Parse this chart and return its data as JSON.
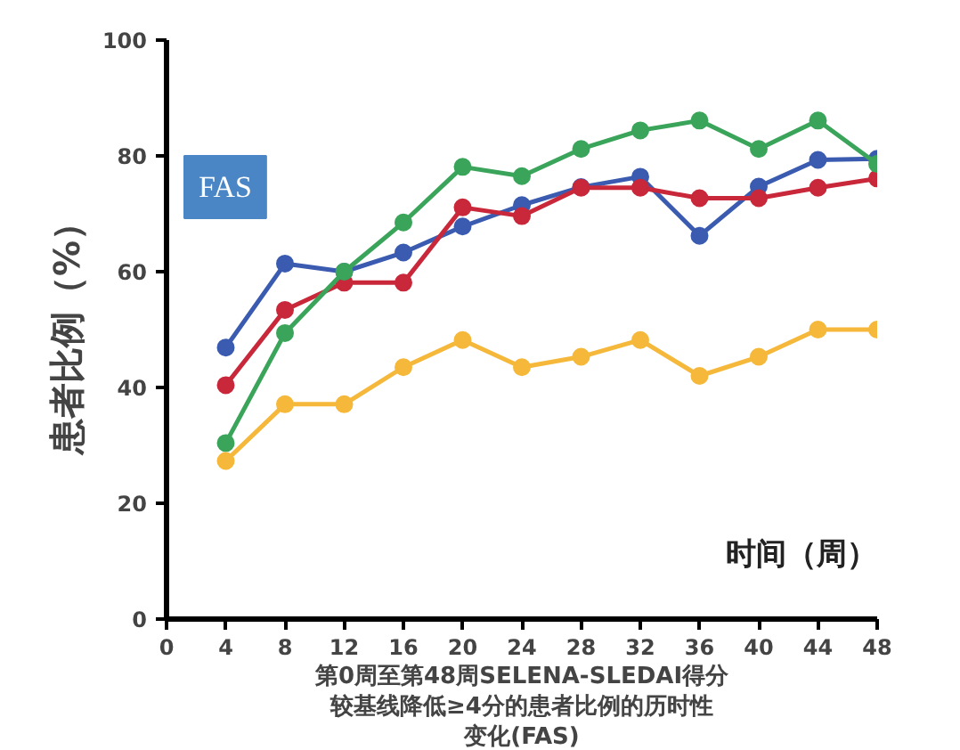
{
  "chart_data": {
    "type": "line",
    "title": "第0周至第48周SELENA-SLEDAI得分较基线降低≥4分的患者比例的历时性变化(FAS)",
    "xlabel": "时间（周）",
    "ylabel": "患者比例（%）",
    "annotations": [
      "FAS"
    ],
    "x": [
      4,
      8,
      12,
      16,
      20,
      24,
      28,
      32,
      36,
      40,
      44,
      48
    ],
    "series": [
      {
        "color": "#3a5bb0",
        "values": [
          46.9,
          61.4,
          60.0,
          63.3,
          67.8,
          71.5,
          74.6,
          76.4,
          66.2,
          74.7,
          79.3,
          79.5
        ]
      },
      {
        "color": "#c8283a",
        "values": [
          40.4,
          53.4,
          58.1,
          58.1,
          71.1,
          69.6,
          74.5,
          74.5,
          72.7,
          72.7,
          74.5,
          76.1
        ]
      },
      {
        "color": "#3aa55a",
        "values": [
          30.4,
          49.4,
          60.0,
          68.5,
          78.1,
          76.5,
          81.2,
          84.4,
          86.1,
          81.2,
          86.1,
          78.6
        ]
      },
      {
        "color": "#f5b83a",
        "values": [
          27.3,
          37.1,
          37.1,
          43.5,
          48.2,
          43.5,
          45.3,
          48.2,
          42.0,
          45.3,
          50.0,
          50.0
        ]
      }
    ],
    "xlim": [
      0,
      48
    ],
    "xticks": [
      0,
      4,
      8,
      12,
      16,
      20,
      24,
      28,
      32,
      36,
      40,
      44,
      48
    ],
    "ylim": [
      0,
      100
    ],
    "yticks": [
      0,
      20,
      40,
      60,
      80,
      100
    ],
    "grid": false,
    "marker": "circle",
    "line_style": "solid"
  }
}
